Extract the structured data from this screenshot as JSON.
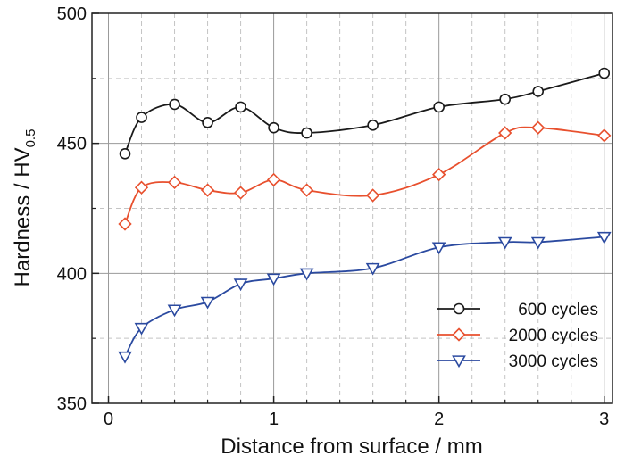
{
  "chart_data": {
    "type": "line",
    "xlabel": "Distance from surface / mm",
    "ylabel": {
      "base": "Hardness / HV",
      "subscript": "0.5"
    },
    "xlim": [
      -0.1,
      3.05
    ],
    "ylim": [
      350,
      500
    ],
    "xticks": [
      0,
      1,
      2,
      3
    ],
    "yticks": [
      350,
      400,
      450,
      500
    ],
    "xtick_labels": [
      "0",
      "1",
      "2",
      "3"
    ],
    "ytick_labels": [
      "350",
      "400",
      "450",
      "500"
    ],
    "grid": true,
    "legend_position": "bottom-right",
    "series": [
      {
        "name": "600 cycles",
        "color": "#1a1a1a",
        "marker": "circle",
        "x": [
          0.1,
          0.2,
          0.4,
          0.6,
          0.8,
          1.0,
          1.2,
          1.6,
          2.0,
          2.4,
          2.6,
          3.0
        ],
        "values": [
          446,
          460,
          465,
          458,
          464,
          456,
          454,
          457,
          464,
          467,
          470,
          477
        ]
      },
      {
        "name": "2000 cycles",
        "color": "#e8502e",
        "marker": "diamond",
        "x": [
          0.1,
          0.2,
          0.4,
          0.6,
          0.8,
          1.0,
          1.2,
          1.6,
          2.0,
          2.4,
          2.6,
          3.0
        ],
        "values": [
          419,
          433,
          435,
          432,
          431,
          436,
          432,
          430,
          438,
          454,
          456,
          453
        ]
      },
      {
        "name": "3000 cycles",
        "color": "#2b4aa0",
        "marker": "triangle-down",
        "x": [
          0.1,
          0.2,
          0.4,
          0.6,
          0.8,
          1.0,
          1.2,
          1.6,
          2.0,
          2.4,
          2.6,
          3.0
        ],
        "values": [
          368,
          379,
          386,
          389,
          396,
          398,
          400,
          402,
          410,
          412,
          412,
          414
        ]
      }
    ]
  }
}
